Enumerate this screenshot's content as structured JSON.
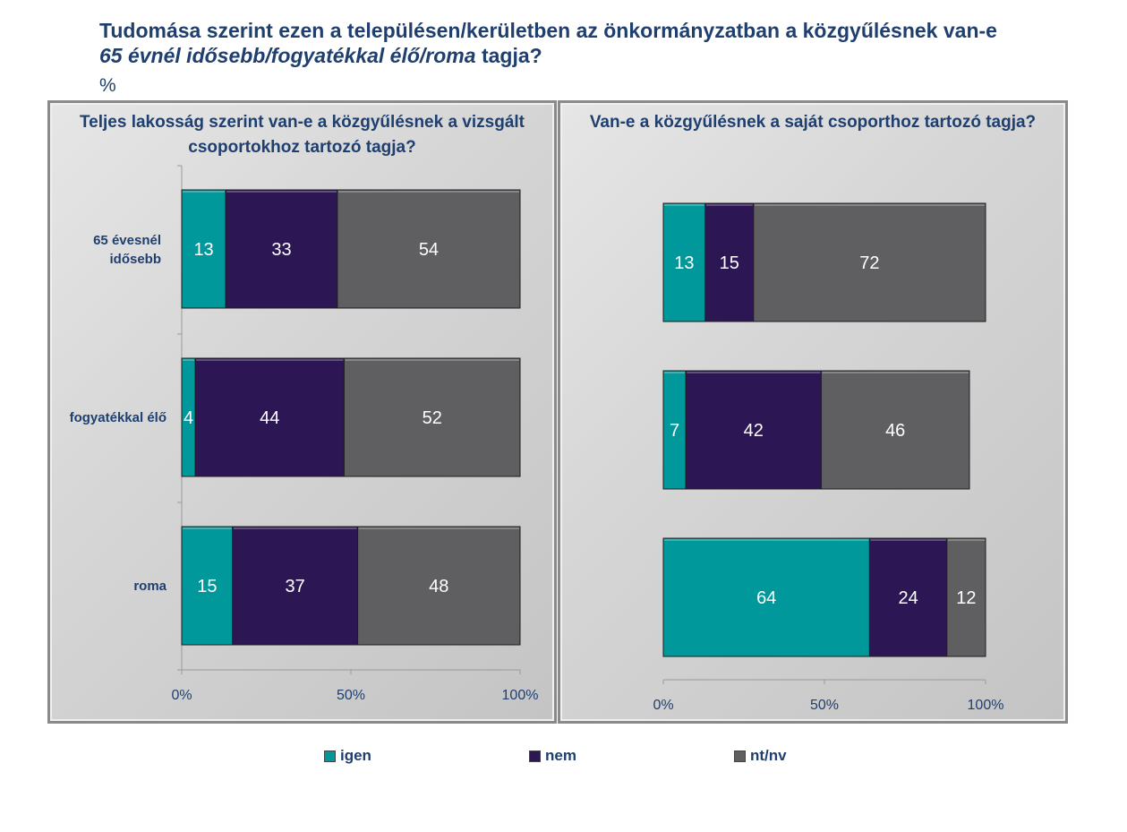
{
  "title": {
    "line1": "Tudomása szerint ezen a településen/kerületben az önkormányzatban a közgyűlésnek van-e",
    "line2_italic": "65 évnél idősebb/fogyatékkal élő/roma",
    "line2_rest": " tagja?"
  },
  "unit": "%",
  "colors": {
    "igen": "#00989a",
    "nem": "#2c1654",
    "ntnv": "#5f5f61"
  },
  "legend": [
    {
      "key": "igen",
      "label": "igen"
    },
    {
      "key": "nem",
      "label": "nem"
    },
    {
      "key": "ntnv",
      "label": "nt/nv"
    }
  ],
  "chart_data": [
    {
      "type": "bar",
      "orientation": "horizontal",
      "stacked": true,
      "title": "Teljes lakosság szerint van-e a közgyűlésnek a vizsgált csoportokhoz tartozó tagja?",
      "categories": [
        "65 évesnél idősebb",
        "fogyatékkal élő",
        "roma"
      ],
      "category_lines": [
        [
          "65 évesnél",
          "idősebb"
        ],
        [
          "fogyatékkal élő"
        ],
        [
          "roma"
        ]
      ],
      "series": [
        {
          "name": "igen",
          "values": [
            13,
            4,
            15
          ]
        },
        {
          "name": "nem",
          "values": [
            33,
            44,
            37
          ]
        },
        {
          "name": "nt/nv",
          "values": [
            54,
            52,
            48
          ]
        }
      ],
      "xlim": [
        0,
        100
      ],
      "xticks": [
        "0%",
        "50%",
        "100%"
      ]
    },
    {
      "type": "bar",
      "orientation": "horizontal",
      "stacked": true,
      "title": "Van-e a közgyűlésnek a saját csoporthoz tartozó tagja?",
      "categories": [
        "65 évesnél idősebb",
        "fogyatékkal élő",
        "roma"
      ],
      "series": [
        {
          "name": "igen",
          "values": [
            13,
            7,
            64
          ]
        },
        {
          "name": "nem",
          "values": [
            15,
            42,
            24
          ]
        },
        {
          "name": "nt/nv",
          "values": [
            72,
            46,
            12
          ]
        }
      ],
      "xlim": [
        0,
        100
      ],
      "xticks": [
        "0%",
        "50%",
        "100%"
      ]
    }
  ]
}
